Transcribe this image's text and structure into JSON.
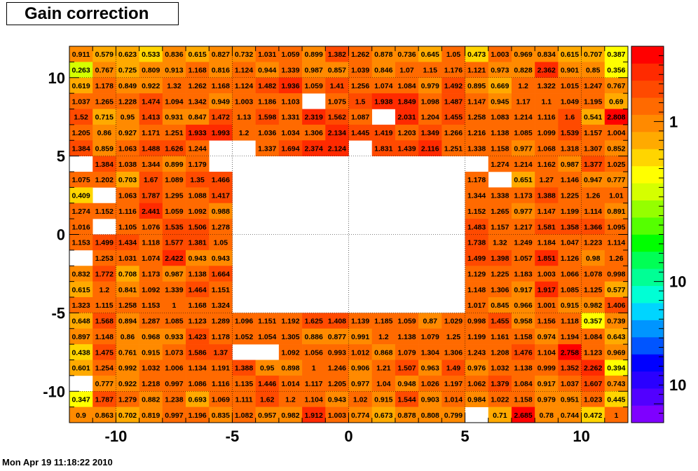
{
  "page": {
    "title": "Gain correction",
    "timestamp": "Mon Apr 19 11:18:22 2010"
  },
  "chart_data": {
    "type": "heatmap",
    "title": "Gain correction",
    "xlabel": "",
    "ylabel": "",
    "xlim": [
      -12,
      12
    ],
    "ylim": [
      -12,
      12
    ],
    "x_ticks": [
      "-10",
      "-5",
      "0",
      "5",
      "10"
    ],
    "y_ticks": [
      "10",
      "5",
      "0",
      "-5",
      "-10"
    ],
    "colorbar": {
      "scale": "log",
      "tick_labels": [
        "1",
        "10",
        "10"
      ]
    },
    "grid": true,
    "rows": [
      [
        "0.911",
        "0.579",
        "0.623",
        "0.533",
        "0.836",
        "0.615",
        "0.827",
        "0.732",
        "1.031",
        "1.059",
        "0.899",
        "1.382",
        "1.262",
        "0.878",
        "0.736",
        "0.645",
        "1.05",
        "0.473",
        "1.003",
        "0.969",
        "0.834",
        "0.615",
        "0.707",
        "0.387"
      ],
      [
        "0.263",
        "0.767",
        "0.725",
        "0.809",
        "0.913",
        "1.168",
        "0.816",
        "1.124",
        "0.944",
        "1.339",
        "0.987",
        "0.857",
        "1.039",
        "0.846",
        "1.07",
        "1.15",
        "1.176",
        "1.121",
        "0.973",
        "0.828",
        "2.362",
        "0.901",
        "0.85",
        "0.356"
      ],
      [
        "0.619",
        "1.178",
        "0.849",
        "0.922",
        "1.32",
        "1.262",
        "1.168",
        "1.124",
        "1.482",
        "1.936",
        "1.059",
        "1.41",
        "1.256",
        "1.074",
        "1.084",
        "0.979",
        "1.492",
        "0.895",
        "0.669",
        "1.2",
        "1.322",
        "1.015",
        "1.247",
        "0.767"
      ],
      [
        "1.037",
        "1.265",
        "1.228",
        "1.474",
        "1.094",
        "1.342",
        "0.949",
        "1.003",
        "1.186",
        "1.103",
        "",
        "1.075",
        "1.5",
        "1.938",
        "1.849",
        "1.098",
        "1.487",
        "1.147",
        "0.945",
        "1.17",
        "1.1",
        "1.049",
        "1.195",
        "0.69"
      ],
      [
        "1.52",
        "0.715",
        "0.95",
        "1.413",
        "0.931",
        "0.847",
        "1.472",
        "1.13",
        "1.598",
        "1.331",
        "2.319",
        "1.562",
        "1.087",
        "",
        "2.031",
        "1.204",
        "1.455",
        "1.258",
        "1.083",
        "1.214",
        "1.116",
        "1.6",
        "0.541",
        "2.808"
      ],
      [
        "1.205",
        "0.86",
        "0.927",
        "1.171",
        "1.251",
        "1.933",
        "1.993",
        "1.2",
        "1.036",
        "1.034",
        "1.306",
        "2.134",
        "1.445",
        "1.419",
        "1.203",
        "1.349",
        "1.266",
        "1.216",
        "1.138",
        "1.085",
        "1.099",
        "1.539",
        "1.157",
        "1.004"
      ],
      [
        "1.384",
        "0.859",
        "1.063",
        "1.488",
        "1.626",
        "1.244",
        "",
        "",
        "1.337",
        "1.694",
        "2.374",
        "2.124",
        "",
        "1.831",
        "1.439",
        "2.116",
        "1.251",
        "1.338",
        "1.158",
        "0.977",
        "1.068",
        "1.318",
        "1.307",
        "0.852"
      ],
      [
        "",
        "1.384",
        "1.038",
        "1.344",
        "0.899",
        "1.179",
        "",
        "",
        "",
        "",
        "",
        "",
        "",
        "",
        "",
        "",
        "",
        "",
        "1.274",
        "1.214",
        "1.162",
        "0.987",
        "1.377",
        "1.025"
      ],
      [
        "1.075",
        "1.202",
        "0.703",
        "1.67",
        "1.089",
        "1.35",
        "1.466",
        "",
        "",
        "",
        "",
        "",
        "",
        "",
        "",
        "",
        "",
        "1.178",
        "",
        "0.651",
        "1.27",
        "1.146",
        "0.947",
        "0.777"
      ],
      [
        "0.409",
        "",
        "1.063",
        "1.787",
        "1.295",
        "1.088",
        "1.417",
        "",
        "",
        "",
        "",
        "",
        "",
        "",
        "",
        "",
        "",
        "1.344",
        "1.338",
        "1.173",
        "1.388",
        "1.225",
        "1.26",
        "1.01"
      ],
      [
        "1.274",
        "1.152",
        "1.116",
        "2.441",
        "1.059",
        "1.092",
        "0.988",
        "",
        "",
        "",
        "",
        "",
        "",
        "",
        "",
        "",
        "",
        "1.152",
        "1.265",
        "0.977",
        "1.147",
        "1.199",
        "1.114",
        "0.891"
      ],
      [
        "1.016",
        "",
        "1.105",
        "1.076",
        "1.535",
        "1.506",
        "1.278",
        "",
        "",
        "",
        "",
        "",
        "",
        "",
        "",
        "",
        "",
        "1.483",
        "1.157",
        "1.217",
        "1.581",
        "1.358",
        "1.366",
        "1.095"
      ],
      [
        "1.153",
        "1.499",
        "1.434",
        "1.118",
        "1.577",
        "1.381",
        "1.05",
        "",
        "",
        "",
        "",
        "",
        "",
        "",
        "",
        "",
        "",
        "1.738",
        "1.32",
        "1.249",
        "1.184",
        "1.047",
        "1.223",
        "1.114"
      ],
      [
        "",
        "1.253",
        "1.031",
        "1.074",
        "2.422",
        "0.943",
        "0.943",
        "",
        "",
        "",
        "",
        "",
        "",
        "",
        "",
        "",
        "",
        "1.499",
        "1.398",
        "1.057",
        "1.851",
        "1.126",
        "0.98",
        "1.26"
      ],
      [
        "0.832",
        "1.772",
        "0.708",
        "1.173",
        "0.987",
        "1.138",
        "1.664",
        "",
        "",
        "",
        "",
        "",
        "",
        "",
        "",
        "",
        "",
        "1.129",
        "1.225",
        "1.183",
        "1.003",
        "1.066",
        "1.078",
        "0.998"
      ],
      [
        "0.615",
        "1.2",
        "0.841",
        "1.092",
        "1.339",
        "1.464",
        "1.151",
        "",
        "",
        "",
        "",
        "",
        "",
        "",
        "",
        "",
        "",
        "1.148",
        "1.306",
        "0.917",
        "1.917",
        "1.085",
        "1.125",
        "0.577"
      ],
      [
        "1.323",
        "1.115",
        "1.258",
        "1.153",
        "1",
        "1.168",
        "1.324",
        "",
        "",
        "",
        "",
        "",
        "",
        "",
        "",
        "",
        "",
        "1.017",
        "0.845",
        "0.966",
        "1.001",
        "0.915",
        "0.982",
        "1.406"
      ],
      [
        "0.648",
        "1.568",
        "0.894",
        "1.287",
        "1.085",
        "1.123",
        "1.289",
        "1.096",
        "1.151",
        "1.192",
        "1.625",
        "1.408",
        "1.139",
        "1.185",
        "1.059",
        "0.87",
        "1.029",
        "0.998",
        "1.455",
        "0.958",
        "1.156",
        "1.118",
        "0.357",
        "0.739"
      ],
      [
        "0.897",
        "1.148",
        "0.86",
        "0.968",
        "0.933",
        "1.423",
        "1.178",
        "1.052",
        "1.054",
        "1.305",
        "0.886",
        "0.877",
        "0.991",
        "1.2",
        "1.138",
        "1.079",
        "1.25",
        "1.199",
        "1.161",
        "1.158",
        "0.974",
        "1.194",
        "1.084",
        "0.643"
      ],
      [
        "0.438",
        "1.475",
        "0.761",
        "0.915",
        "1.073",
        "1.586",
        "1.37",
        "",
        "",
        "1.092",
        "1.056",
        "0.993",
        "1.012",
        "0.868",
        "1.079",
        "1.304",
        "1.306",
        "1.243",
        "1.208",
        "1.476",
        "1.104",
        "2.758",
        "1.123",
        "0.969"
      ],
      [
        "0.601",
        "1.254",
        "0.992",
        "1.032",
        "1.006",
        "1.134",
        "1.191",
        "1.388",
        "0.95",
        "0.898",
        "1",
        "1.246",
        "0.906",
        "1.21",
        "1.507",
        "0.963",
        "1.49",
        "0.976",
        "1.032",
        "1.138",
        "0.999",
        "1.352",
        "2.262",
        "0.394"
      ],
      [
        "",
        "0.777",
        "0.922",
        "1.218",
        "0.997",
        "1.086",
        "1.116",
        "1.135",
        "1.446",
        "1.014",
        "1.117",
        "1.205",
        "0.977",
        "1.04",
        "0.948",
        "1.026",
        "1.197",
        "1.062",
        "1.379",
        "1.084",
        "0.917",
        "1.037",
        "1.607",
        "0.743"
      ],
      [
        "0.347",
        "1.787",
        "1.279",
        "0.882",
        "1.238",
        "0.693",
        "1.069",
        "1.111",
        "1.62",
        "1.2",
        "1.104",
        "0.943",
        "1.02",
        "0.915",
        "1.544",
        "0.903",
        "1.014",
        "0.984",
        "1.022",
        "1.158",
        "0.979",
        "0.951",
        "1.023",
        "0.445"
      ],
      [
        "0.9",
        "0.863",
        "0.702",
        "0.819",
        "0.997",
        "1.196",
        "0.835",
        "1.082",
        "0.957",
        "0.982",
        "1.912",
        "1.003",
        "0.774",
        "0.673",
        "0.878",
        "0.808",
        "0.799",
        "",
        "0.71",
        "2.685",
        "0.78",
        "0.744",
        "0.472",
        "1"
      ]
    ],
    "palette": [
      "#7f00ff",
      "#5200ff",
      "#2a00ff",
      "#0000ff",
      "#0055ff",
      "#0095ff",
      "#00d5ff",
      "#00ffd5",
      "#00ff95",
      "#00ff55",
      "#00ff00",
      "#55ff00",
      "#95ff00",
      "#d5ff00",
      "#ffff00",
      "#ffd500",
      "#ffaa00",
      "#ff8a00",
      "#ff6a00",
      "#ff4a00",
      "#ff2a00",
      "#ff0000"
    ]
  }
}
